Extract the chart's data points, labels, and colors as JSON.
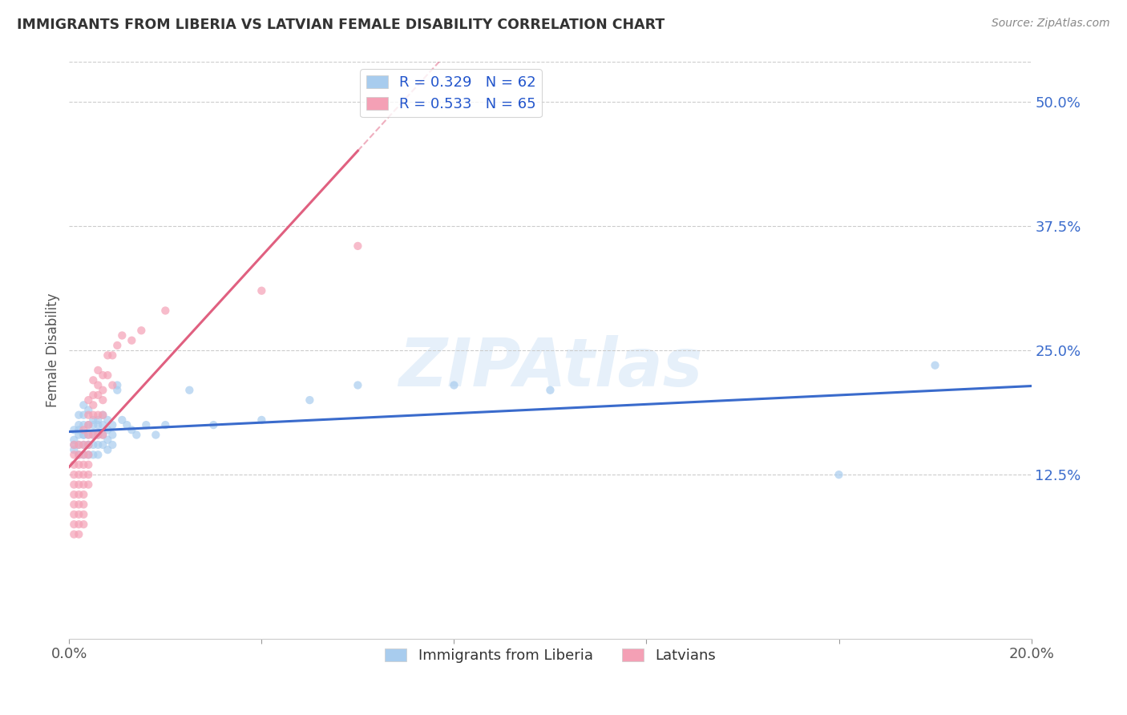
{
  "title": "IMMIGRANTS FROM LIBERIA VS LATVIAN FEMALE DISABILITY CORRELATION CHART",
  "source": "Source: ZipAtlas.com",
  "ylabel": "Female Disability",
  "xlim": [
    0.0,
    0.2
  ],
  "ylim": [
    -0.04,
    0.54
  ],
  "xtick_positions": [
    0.0,
    0.04,
    0.08,
    0.12,
    0.16,
    0.2
  ],
  "xtick_labels": [
    "0.0%",
    "",
    "",
    "",
    "",
    "20.0%"
  ],
  "ytick_values": [
    0.125,
    0.25,
    0.375,
    0.5
  ],
  "ytick_labels": [
    "12.5%",
    "25.0%",
    "37.5%",
    "50.0%"
  ],
  "grid_color": "#cccccc",
  "background_color": "#ffffff",
  "series": [
    {
      "name": "Immigrants from Liberia",
      "dot_color": "#a8ccee",
      "line_color": "#3a6bcc",
      "R": 0.329,
      "N": 62,
      "x": [
        0.001,
        0.001,
        0.001,
        0.001,
        0.002,
        0.002,
        0.002,
        0.002,
        0.002,
        0.002,
        0.003,
        0.003,
        0.003,
        0.003,
        0.003,
        0.003,
        0.003,
        0.004,
        0.004,
        0.004,
        0.004,
        0.004,
        0.004,
        0.005,
        0.005,
        0.005,
        0.005,
        0.005,
        0.006,
        0.006,
        0.006,
        0.006,
        0.006,
        0.007,
        0.007,
        0.007,
        0.007,
        0.008,
        0.008,
        0.008,
        0.008,
        0.009,
        0.009,
        0.009,
        0.01,
        0.01,
        0.011,
        0.012,
        0.013,
        0.014,
        0.016,
        0.018,
        0.02,
        0.025,
        0.03,
        0.04,
        0.05,
        0.06,
        0.08,
        0.1,
        0.16,
        0.18
      ],
      "y": [
        0.17,
        0.16,
        0.155,
        0.15,
        0.185,
        0.175,
        0.165,
        0.155,
        0.145,
        0.17,
        0.195,
        0.185,
        0.175,
        0.165,
        0.155,
        0.145,
        0.165,
        0.19,
        0.175,
        0.165,
        0.155,
        0.155,
        0.145,
        0.18,
        0.175,
        0.165,
        0.155,
        0.145,
        0.18,
        0.175,
        0.165,
        0.155,
        0.145,
        0.185,
        0.175,
        0.165,
        0.155,
        0.18,
        0.17,
        0.16,
        0.15,
        0.175,
        0.165,
        0.155,
        0.215,
        0.21,
        0.18,
        0.175,
        0.17,
        0.165,
        0.175,
        0.165,
        0.175,
        0.21,
        0.175,
        0.18,
        0.2,
        0.215,
        0.215,
        0.21,
        0.125,
        0.235
      ]
    },
    {
      "name": "Latvians",
      "dot_color": "#f4a0b5",
      "line_color": "#e06080",
      "R": 0.533,
      "N": 65,
      "x": [
        0.001,
        0.001,
        0.001,
        0.001,
        0.001,
        0.001,
        0.001,
        0.001,
        0.001,
        0.001,
        0.002,
        0.002,
        0.002,
        0.002,
        0.002,
        0.002,
        0.002,
        0.002,
        0.002,
        0.002,
        0.003,
        0.003,
        0.003,
        0.003,
        0.003,
        0.003,
        0.003,
        0.003,
        0.003,
        0.003,
        0.004,
        0.004,
        0.004,
        0.004,
        0.004,
        0.004,
        0.004,
        0.004,
        0.004,
        0.005,
        0.005,
        0.005,
        0.005,
        0.005,
        0.006,
        0.006,
        0.006,
        0.006,
        0.006,
        0.007,
        0.007,
        0.007,
        0.007,
        0.007,
        0.008,
        0.008,
        0.009,
        0.009,
        0.01,
        0.011,
        0.013,
        0.015,
        0.02,
        0.04,
        0.06
      ],
      "y": [
        0.155,
        0.145,
        0.135,
        0.125,
        0.115,
        0.105,
        0.095,
        0.085,
        0.075,
        0.065,
        0.155,
        0.145,
        0.135,
        0.125,
        0.115,
        0.105,
        0.095,
        0.085,
        0.075,
        0.065,
        0.17,
        0.155,
        0.145,
        0.135,
        0.125,
        0.115,
        0.105,
        0.095,
        0.085,
        0.075,
        0.2,
        0.185,
        0.175,
        0.165,
        0.155,
        0.145,
        0.135,
        0.125,
        0.115,
        0.22,
        0.205,
        0.195,
        0.185,
        0.165,
        0.23,
        0.215,
        0.205,
        0.185,
        0.165,
        0.225,
        0.21,
        0.2,
        0.185,
        0.165,
        0.245,
        0.225,
        0.245,
        0.215,
        0.255,
        0.265,
        0.26,
        0.27,
        0.29,
        0.31,
        0.355
      ]
    }
  ]
}
